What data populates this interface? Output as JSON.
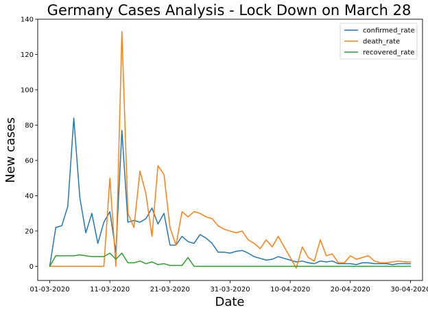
{
  "chart_data": {
    "type": "line",
    "title": "Germany Cases Analysis - Lock Down on March 28",
    "xlabel": "Date",
    "ylabel": "New cases",
    "xlim": [
      "2020-02-28",
      "2020-05-02"
    ],
    "ylim": [
      -8,
      140
    ],
    "grid": false,
    "legend_position": "top-right",
    "x_tick_labels": [
      "01-03-2020",
      "11-03-2020",
      "21-03-2020",
      "31-03-2020",
      "10-04-2020",
      "20-04-2020",
      "30-04-2020"
    ],
    "y_tick_labels": [
      "0",
      "20",
      "40",
      "60",
      "80",
      "100",
      "120",
      "140"
    ],
    "x_start": "2020-03-01",
    "series": [
      {
        "name": "confirmed_rate",
        "color": "#1f77b4",
        "values": [
          0,
          22,
          23,
          34,
          84,
          39,
          19,
          30,
          13,
          25,
          31,
          8,
          77,
          25,
          26,
          25,
          27,
          33,
          24,
          30,
          12,
          12,
          17,
          14,
          13,
          18,
          16,
          13,
          8,
          8,
          7.5,
          8.5,
          9,
          7.5,
          5.5,
          4.5,
          3.5,
          4,
          5.5,
          4.5,
          3.5,
          2.5,
          3,
          2,
          1.5,
          3,
          2.5,
          3,
          1.5,
          1.5,
          1.5,
          1,
          2,
          2,
          1.5,
          1.5,
          1.5,
          1,
          1.5,
          1.5,
          1.5
        ]
      },
      {
        "name": "death_rate",
        "color": "#ff7f0e",
        "values": [
          0,
          0,
          0,
          0,
          0,
          0,
          0,
          0,
          0,
          0,
          50,
          0,
          133,
          30,
          22,
          54,
          41,
          17,
          57,
          52,
          22,
          12,
          31,
          28,
          31,
          30,
          28,
          27,
          23,
          21,
          20,
          19,
          20,
          15,
          13,
          10,
          15,
          11,
          17,
          11,
          5,
          -1,
          11,
          5,
          3,
          15,
          6,
          7,
          2,
          2,
          6,
          4,
          5,
          6,
          3,
          2,
          2,
          2.5,
          3,
          2.5,
          2.5
        ]
      },
      {
        "name": "recovered_rate",
        "color": "#2ca02c",
        "values": [
          0,
          6,
          6,
          6,
          6,
          6.5,
          6,
          5.5,
          5.5,
          5.5,
          7.5,
          4,
          7.5,
          2,
          2,
          3,
          1.5,
          2.5,
          1,
          1.5,
          0.5,
          0.5,
          0.5,
          5,
          0,
          0,
          0,
          0,
          0,
          0,
          0,
          0,
          0,
          0,
          0,
          0,
          0,
          0,
          0,
          0,
          0,
          0,
          0,
          0,
          0,
          0,
          0,
          0,
          0,
          0,
          0,
          0,
          0,
          0,
          0,
          0,
          0,
          0,
          0,
          0,
          0
        ]
      }
    ]
  }
}
